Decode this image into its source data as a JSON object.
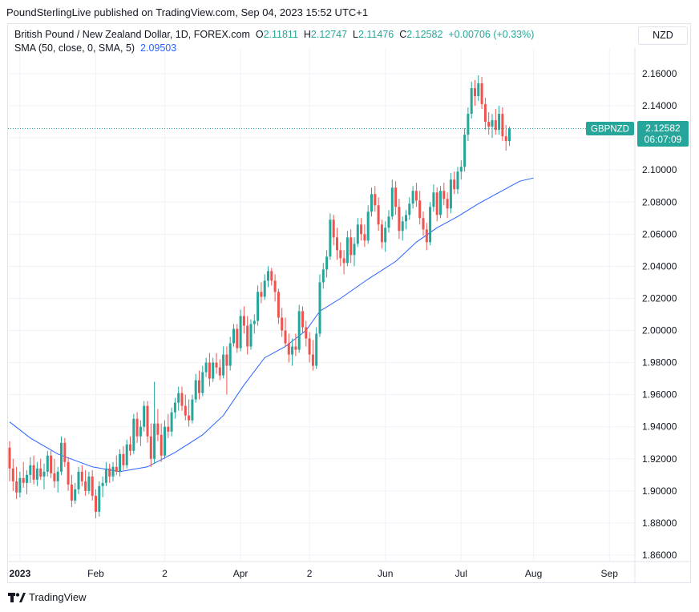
{
  "publisher_line": "PoundSterlingLive published on TradingView.com, Sep 04, 2023 15:52 UTC+1",
  "legend": {
    "symbol": "British Pound / New Zealand Dollar, 1D, FOREX.com",
    "o_label": "O",
    "o": "2.11811",
    "h_label": "H",
    "h": "2.12747",
    "l_label": "L",
    "l": "2.11476",
    "c_label": "C",
    "c": "2.12582",
    "change": "+0.00706 (+0.33%)",
    "sma_label": "SMA (50, close, 0, SMA, 5)",
    "sma_value": "2.09503"
  },
  "currency_button": "NZD",
  "price_tag": {
    "symbol": "GBPNZD",
    "price": "2.12582",
    "countdown": "06:07:09"
  },
  "branding": "TradingView",
  "colors": {
    "up": "#26a69a",
    "down": "#ef5350",
    "sma": "#2962ff",
    "tag": "#26a69a",
    "grid": "#f0f3fa"
  },
  "chart_data": {
    "type": "candlestick",
    "symbol": "GBPNZD",
    "interval": "1D",
    "ylim": [
      1.855,
      2.175
    ],
    "y_ticks": [
      "2.16000",
      "2.14000",
      "2.12000",
      "2.10000",
      "2.08000",
      "2.06000",
      "2.04000",
      "2.02000",
      "2.00000",
      "1.98000",
      "1.96000",
      "1.94000",
      "1.92000",
      "1.90000",
      "1.88000",
      "1.86000"
    ],
    "x_ticks": [
      {
        "label": "2023",
        "bold": true,
        "index": 3
      },
      {
        "label": "Feb",
        "index": 25
      },
      {
        "label": "2",
        "index": 45
      },
      {
        "label": "Apr",
        "index": 67
      },
      {
        "label": "2",
        "index": 87
      },
      {
        "label": "Jun",
        "index": 109
      },
      {
        "label": "Jul",
        "index": 131
      },
      {
        "label": "Aug",
        "index": 152
      },
      {
        "label": "Sep",
        "index": 174
      }
    ],
    "grid": true,
    "last_close": 2.12582,
    "candles": [
      [
        1.927,
        1.931,
        1.906,
        1.914
      ],
      [
        1.914,
        1.92,
        1.9,
        1.906
      ],
      [
        1.906,
        1.915,
        1.895,
        1.899
      ],
      [
        1.899,
        1.912,
        1.896,
        1.908
      ],
      [
        1.908,
        1.918,
        1.902,
        1.905
      ],
      [
        1.905,
        1.913,
        1.898,
        1.91
      ],
      [
        1.91,
        1.921,
        1.905,
        1.916
      ],
      [
        1.916,
        1.922,
        1.904,
        1.907
      ],
      [
        1.907,
        1.918,
        1.903,
        1.914
      ],
      [
        1.914,
        1.92,
        1.907,
        1.909
      ],
      [
        1.909,
        1.917,
        1.901,
        1.912
      ],
      [
        1.912,
        1.925,
        1.909,
        1.922
      ],
      [
        1.922,
        1.925,
        1.908,
        1.911
      ],
      [
        1.911,
        1.92,
        1.902,
        1.906
      ],
      [
        1.906,
        1.915,
        1.899,
        1.912
      ],
      [
        1.912,
        1.934,
        1.91,
        1.93
      ],
      [
        1.93,
        1.933,
        1.915,
        1.918
      ],
      [
        1.918,
        1.921,
        1.9,
        1.904
      ],
      [
        1.904,
        1.91,
        1.89,
        1.894
      ],
      [
        1.894,
        1.905,
        1.892,
        1.901
      ],
      [
        1.901,
        1.915,
        1.898,
        1.912
      ],
      [
        1.912,
        1.916,
        1.903,
        1.906
      ],
      [
        1.906,
        1.913,
        1.897,
        1.9
      ],
      [
        1.9,
        1.912,
        1.898,
        1.909
      ],
      [
        1.909,
        1.913,
        1.894,
        1.897
      ],
      [
        1.897,
        1.901,
        1.883,
        1.887
      ],
      [
        1.887,
        1.906,
        1.884,
        1.903
      ],
      [
        1.903,
        1.909,
        1.896,
        1.905
      ],
      [
        1.905,
        1.918,
        1.903,
        1.914
      ],
      [
        1.914,
        1.917,
        1.905,
        1.909
      ],
      [
        1.909,
        1.918,
        1.906,
        1.915
      ],
      [
        1.915,
        1.922,
        1.91,
        1.912
      ],
      [
        1.912,
        1.926,
        1.909,
        1.923
      ],
      [
        1.923,
        1.928,
        1.913,
        1.916
      ],
      [
        1.916,
        1.932,
        1.914,
        1.929
      ],
      [
        1.929,
        1.934,
        1.922,
        1.925
      ],
      [
        1.925,
        1.948,
        1.923,
        1.945
      ],
      [
        1.945,
        1.949,
        1.93,
        1.934
      ],
      [
        1.934,
        1.944,
        1.928,
        1.94
      ],
      [
        1.94,
        1.956,
        1.937,
        1.953
      ],
      [
        1.953,
        1.956,
        1.93,
        1.934
      ],
      [
        1.934,
        1.942,
        1.915,
        1.92
      ],
      [
        1.92,
        1.968,
        1.917,
        1.942
      ],
      [
        1.942,
        1.951,
        1.931,
        1.935
      ],
      [
        1.935,
        1.942,
        1.918,
        1.922
      ],
      [
        1.922,
        1.944,
        1.92,
        1.94
      ],
      [
        1.94,
        1.948,
        1.933,
        1.937
      ],
      [
        1.937,
        1.952,
        1.934,
        1.949
      ],
      [
        1.949,
        1.958,
        1.945,
        1.955
      ],
      [
        1.955,
        1.965,
        1.95,
        1.961
      ],
      [
        1.961,
        1.965,
        1.95,
        1.953
      ],
      [
        1.953,
        1.96,
        1.944,
        1.947
      ],
      [
        1.947,
        1.957,
        1.94,
        1.944
      ],
      [
        1.944,
        1.96,
        1.942,
        1.957
      ],
      [
        1.957,
        1.973,
        1.955,
        1.969
      ],
      [
        1.969,
        1.975,
        1.957,
        1.961
      ],
      [
        1.961,
        1.978,
        1.959,
        1.974
      ],
      [
        1.974,
        1.983,
        1.971,
        1.98
      ],
      [
        1.98,
        1.986,
        1.965,
        1.97
      ],
      [
        1.97,
        1.983,
        1.968,
        1.98
      ],
      [
        1.98,
        1.986,
        1.973,
        1.977
      ],
      [
        1.977,
        1.982,
        1.969,
        1.972
      ],
      [
        1.972,
        1.99,
        1.97,
        1.985
      ],
      [
        1.985,
        1.99,
        1.96,
        1.978
      ],
      [
        1.978,
        1.996,
        1.975,
        1.992
      ],
      [
        1.992,
        2.004,
        1.99,
        2.001
      ],
      [
        2.001,
        2.004,
        1.986,
        1.989
      ],
      [
        1.989,
        2.013,
        1.987,
        2.009
      ],
      [
        2.009,
        2.015,
        1.998,
        2.003
      ],
      [
        2.003,
        2.009,
        1.985,
        1.99
      ],
      [
        1.99,
        2.007,
        1.988,
        2.004
      ],
      [
        2.004,
        2.01,
        1.998,
        2.006
      ],
      [
        2.006,
        2.028,
        2.003,
        2.024
      ],
      [
        2.024,
        2.03,
        2.017,
        2.021
      ],
      [
        2.021,
        2.035,
        2.019,
        2.031
      ],
      [
        2.031,
        2.04,
        2.027,
        2.037
      ],
      [
        2.037,
        2.039,
        2.028,
        2.031
      ],
      [
        2.031,
        2.035,
        2.018,
        2.024
      ],
      [
        2.024,
        2.026,
        2.004,
        2.008
      ],
      [
        2.008,
        2.014,
        1.996,
        2.0
      ],
      [
        2.0,
        2.008,
        1.99,
        1.992
      ],
      [
        1.992,
        1.998,
        1.98,
        1.985
      ],
      [
        1.985,
        1.995,
        1.978,
        1.99
      ],
      [
        1.99,
        1.998,
        1.984,
        1.988
      ],
      [
        1.988,
        2.016,
        1.986,
        2.012
      ],
      [
        2.012,
        2.015,
        1.998,
        2.002
      ],
      [
        2.002,
        2.006,
        1.99,
        1.995
      ],
      [
        1.995,
        1.999,
        1.98,
        1.985
      ],
      [
        1.985,
        1.994,
        1.975,
        1.978
      ],
      [
        1.978,
        2.002,
        1.976,
        1.998
      ],
      [
        1.998,
        2.035,
        1.996,
        2.03
      ],
      [
        2.03,
        2.042,
        2.026,
        2.038
      ],
      [
        2.038,
        2.05,
        2.033,
        2.046
      ],
      [
        2.046,
        2.073,
        2.044,
        2.069
      ],
      [
        2.069,
        2.072,
        2.053,
        2.058
      ],
      [
        2.058,
        2.064,
        2.044,
        2.05
      ],
      [
        2.05,
        2.055,
        2.04,
        2.045
      ],
      [
        2.045,
        2.05,
        2.035,
        2.042
      ],
      [
        2.042,
        2.062,
        2.04,
        2.058
      ],
      [
        2.058,
        2.063,
        2.042,
        2.047
      ],
      [
        2.047,
        2.058,
        2.04,
        2.054
      ],
      [
        2.054,
        2.07,
        2.052,
        2.066
      ],
      [
        2.066,
        2.07,
        2.056,
        2.06
      ],
      [
        2.06,
        2.066,
        2.052,
        2.056
      ],
      [
        2.056,
        2.078,
        2.054,
        2.074
      ],
      [
        2.074,
        2.089,
        2.071,
        2.085
      ],
      [
        2.085,
        2.09,
        2.074,
        2.078
      ],
      [
        2.078,
        2.083,
        2.062,
        2.066
      ],
      [
        2.066,
        2.069,
        2.051,
        2.055
      ],
      [
        2.055,
        2.068,
        2.049,
        2.064
      ],
      [
        2.064,
        2.075,
        2.061,
        2.071
      ],
      [
        2.071,
        2.094,
        2.069,
        2.089
      ],
      [
        2.089,
        2.093,
        2.072,
        2.077
      ],
      [
        2.077,
        2.082,
        2.057,
        2.062
      ],
      [
        2.062,
        2.071,
        2.056,
        2.068
      ],
      [
        2.068,
        2.075,
        2.063,
        2.072
      ],
      [
        2.072,
        2.083,
        2.069,
        2.079
      ],
      [
        2.079,
        2.09,
        2.076,
        2.087
      ],
      [
        2.087,
        2.092,
        2.077,
        2.081
      ],
      [
        2.081,
        2.087,
        2.066,
        2.07
      ],
      [
        2.07,
        2.074,
        2.059,
        2.063
      ],
      [
        2.063,
        2.067,
        2.05,
        2.055
      ],
      [
        2.055,
        2.08,
        2.053,
        2.077
      ],
      [
        2.077,
        2.091,
        2.074,
        2.086
      ],
      [
        2.086,
        2.089,
        2.068,
        2.072
      ],
      [
        2.072,
        2.09,
        2.07,
        2.087
      ],
      [
        2.087,
        2.092,
        2.078,
        2.082
      ],
      [
        2.082,
        2.086,
        2.07,
        2.076
      ],
      [
        2.076,
        2.098,
        2.073,
        2.094
      ],
      [
        2.094,
        2.099,
        2.085,
        2.088
      ],
      [
        2.088,
        2.102,
        2.085,
        2.099
      ],
      [
        2.099,
        2.106,
        2.094,
        2.102
      ],
      [
        2.102,
        2.126,
        2.099,
        2.122
      ],
      [
        2.122,
        2.139,
        2.118,
        2.135
      ],
      [
        2.135,
        2.155,
        2.132,
        2.151
      ],
      [
        2.151,
        2.156,
        2.14,
        2.146
      ],
      [
        2.146,
        2.159,
        2.143,
        2.154
      ],
      [
        2.154,
        2.158,
        2.138,
        2.141
      ],
      [
        2.141,
        2.145,
        2.125,
        2.13
      ],
      [
        2.13,
        2.136,
        2.122,
        2.127
      ],
      [
        2.127,
        2.135,
        2.12,
        2.131
      ],
      [
        2.131,
        2.138,
        2.122,
        2.125
      ],
      [
        2.125,
        2.14,
        2.122,
        2.135
      ],
      [
        2.135,
        2.139,
        2.118,
        2.121
      ],
      [
        2.121,
        2.128,
        2.112,
        2.118
      ],
      [
        2.118,
        2.127,
        2.115,
        2.1258
      ]
    ],
    "sma": [
      [
        0,
        1.943
      ],
      [
        6,
        1.933
      ],
      [
        14,
        1.923
      ],
      [
        24,
        1.915
      ],
      [
        32,
        1.912
      ],
      [
        40,
        1.915
      ],
      [
        48,
        1.924
      ],
      [
        56,
        1.935
      ],
      [
        62,
        1.947
      ],
      [
        68,
        1.966
      ],
      [
        74,
        1.983
      ],
      [
        80,
        1.99
      ],
      [
        86,
        2.0
      ],
      [
        90,
        2.012
      ],
      [
        96,
        2.02
      ],
      [
        104,
        2.032
      ],
      [
        112,
        2.043
      ],
      [
        118,
        2.055
      ],
      [
        124,
        2.064
      ],
      [
        130,
        2.071
      ],
      [
        136,
        2.079
      ],
      [
        142,
        2.086
      ],
      [
        148,
        2.093
      ],
      [
        152,
        2.095
      ]
    ]
  }
}
